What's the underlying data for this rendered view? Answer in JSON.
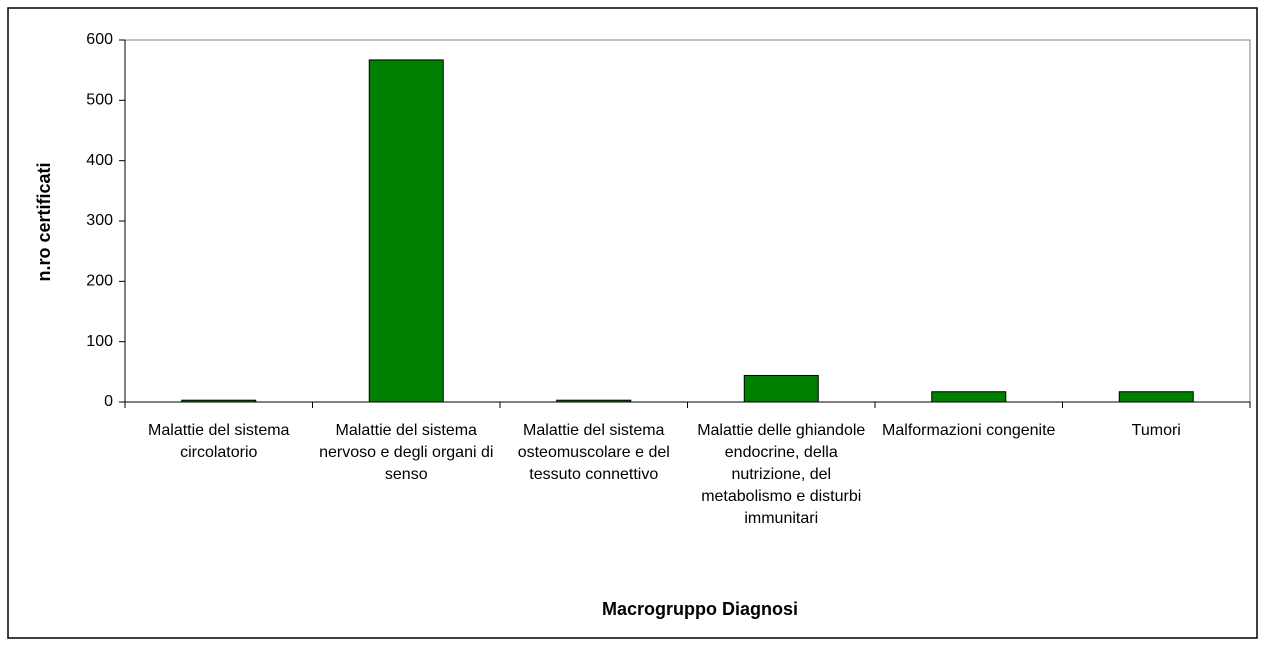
{
  "chart_data": {
    "type": "bar",
    "x_label": "Macrogruppo Diagnosi",
    "y_label": "n.ro certificati",
    "categories": [
      "Malattie del sistema circolatorio",
      "Malattie del sistema nervoso e degli organi di senso",
      "Malattie del sistema osteomuscolare e del tessuto connettivo",
      "Malattie delle ghiandole endocrine, della nutrizione, del metabolismo e disturbi immunitari",
      "Malformazioni congenite",
      "Tumori"
    ],
    "values": [
      3,
      567,
      3,
      44,
      17,
      17
    ],
    "color": "#008000",
    "ylim": [
      0,
      600
    ],
    "yticks": [
      0,
      100,
      200,
      300,
      400,
      500,
      600
    ],
    "grid": false
  }
}
